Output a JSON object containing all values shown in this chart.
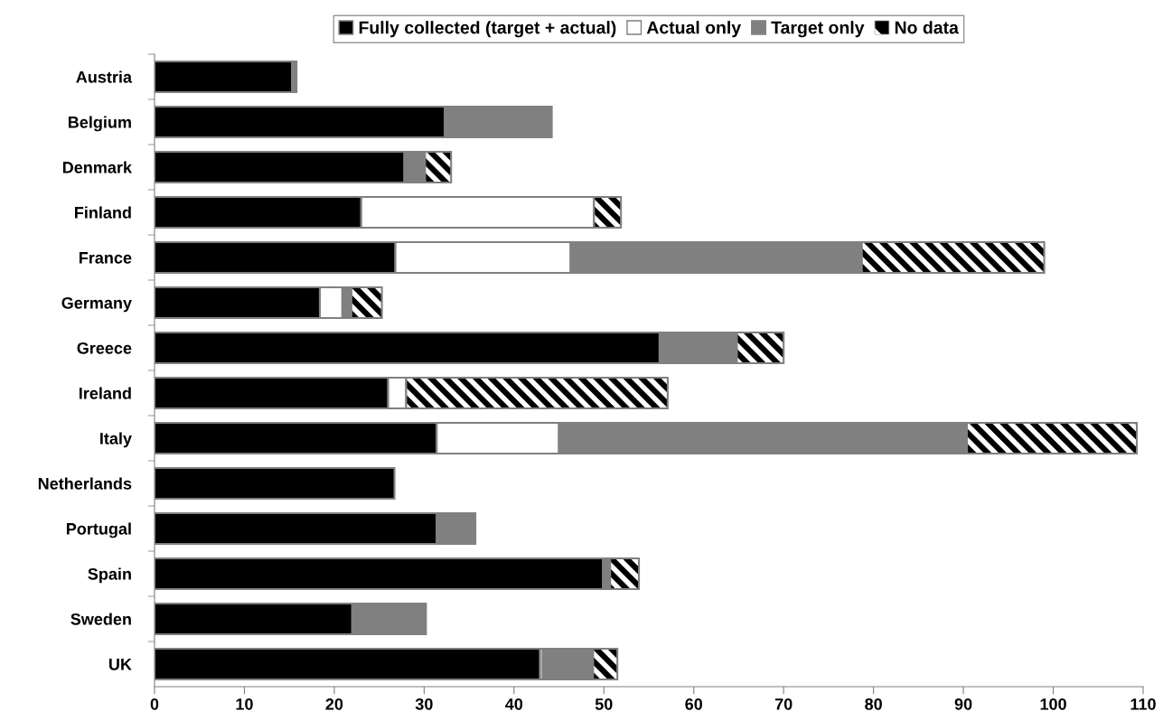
{
  "chart_data": {
    "type": "bar",
    "orientation": "horizontal",
    "stacked": true,
    "categories": [
      "Austria",
      "Belgium",
      "Denmark",
      "Finland",
      "France",
      "Germany",
      "Greece",
      "Ireland",
      "Italy",
      "Netherlands",
      "Portugal",
      "Spain",
      "Sweden",
      "UK"
    ],
    "series": [
      {
        "name": "Fully collected (target + actual)",
        "color": "#000000",
        "values": [
          15.3,
          32.3,
          27.8,
          23.0,
          26.8,
          18.4,
          56.2,
          26.0,
          31.4,
          26.7,
          31.4,
          49.9,
          22.0,
          42.9
        ]
      },
      {
        "name": "Actual only",
        "color": "#ffffff",
        "values": [
          null,
          null,
          null,
          25.9,
          19.5,
          2.5,
          null,
          2.0,
          13.6,
          null,
          null,
          null,
          null,
          0.3
        ]
      },
      {
        "name": "Target only",
        "color": "#808080",
        "values": [
          0.5,
          11.9,
          2.3,
          null,
          32.4,
          1.0,
          8.6,
          null,
          45.4,
          null,
          4.3,
          0.8,
          8.2,
          5.6
        ]
      },
      {
        "name": "No data",
        "color": "#000000",
        "values": [
          null,
          null,
          2.9,
          3.0,
          20.3,
          3.4,
          5.2,
          29.1,
          18.9,
          null,
          null,
          3.2,
          null,
          2.7
        ]
      }
    ],
    "xlim": [
      0,
      110
    ],
    "xticks": [
      0,
      10,
      20,
      30,
      40,
      50,
      60,
      70,
      80,
      90,
      100,
      110
    ],
    "grid": false,
    "legend": "top"
  }
}
